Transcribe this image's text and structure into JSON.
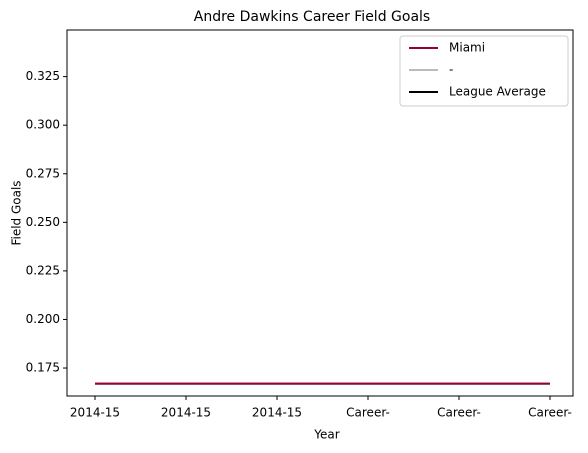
{
  "chart_data": {
    "type": "line",
    "title": "Andre Dawkins Career Field Goals",
    "xlabel": "Year",
    "ylabel": "Field Goals",
    "categories": [
      "2014-15",
      "2014-15",
      "2014-15",
      "Career-",
      "Career-",
      "Career-"
    ],
    "series": [
      {
        "name": "Miami",
        "color": "#98002e",
        "values": [
          0.167,
          0.167,
          0.167,
          0.167,
          0.167,
          0.167
        ]
      },
      {
        "name": "-",
        "color": "#bbbbbb",
        "values": [
          0.167,
          0.167,
          0.167,
          0.167,
          0.167,
          0.167
        ]
      },
      {
        "name": "League Average",
        "color": "#000000",
        "values": [
          0.167,
          0.167,
          0.167,
          0.167,
          0.167,
          0.167
        ]
      }
    ],
    "ylim": [
      0.1606,
      0.349
    ],
    "yticks": [
      0.175,
      {
        "value": 0.2,
        "label": "0.200"
      },
      0.225,
      {
        "value": 0.25,
        "label": "0.250"
      },
      0.275,
      {
        "value": 0.3,
        "label": "0.300"
      },
      0.325
    ],
    "legend": "upper right"
  }
}
